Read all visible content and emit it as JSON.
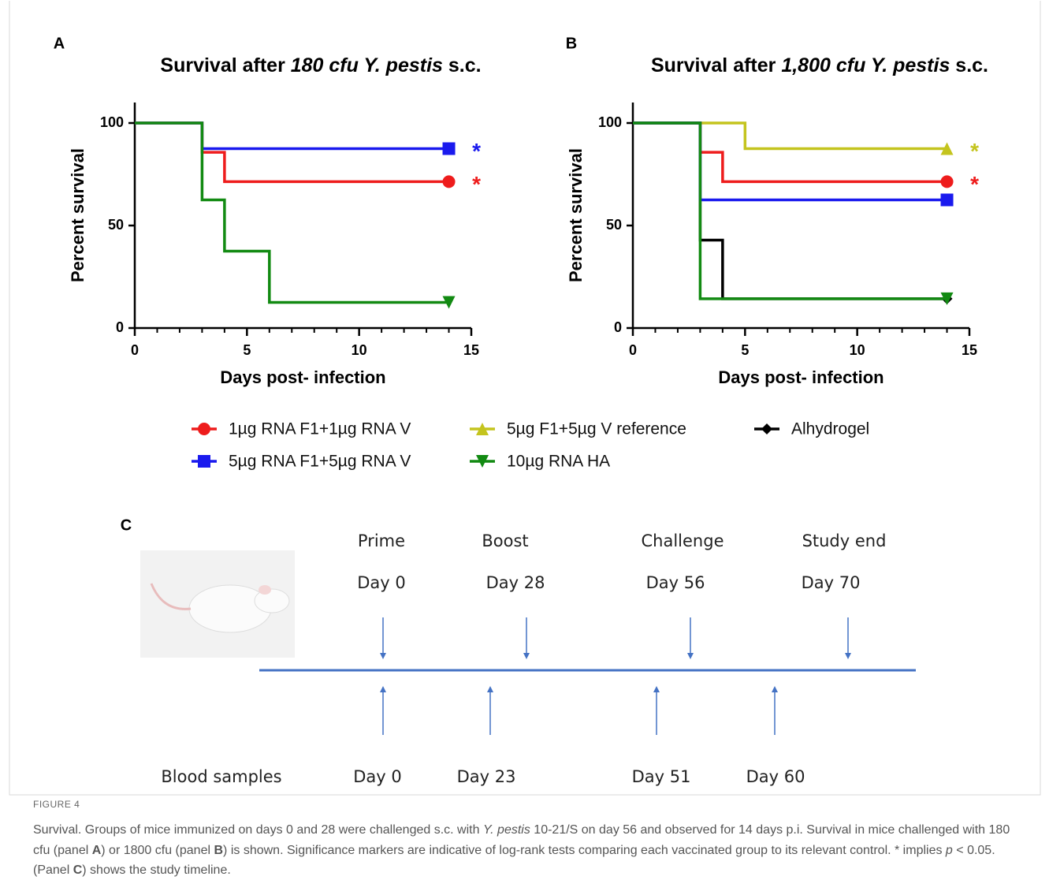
{
  "chart_data": [
    {
      "type": "line",
      "step": true,
      "panel_label": "A",
      "title_parts": [
        {
          "text": "Survival after "
        },
        {
          "text": "180 cfu Y. pestis",
          "italic": true
        },
        {
          "text": " s.c."
        }
      ],
      "x_label": "Days post- infection",
      "y_label": "Percent survival",
      "xlim": [
        0,
        15
      ],
      "xticks": [
        0,
        5,
        10,
        15
      ],
      "ylim": [
        0,
        110
      ],
      "yticks": [
        0,
        50,
        100
      ],
      "series": [
        {
          "color": "#ee1c1c",
          "marker": "circle",
          "annotation": "*",
          "x": [
            0,
            3,
            4,
            14
          ],
          "values": [
            100,
            85.7,
            71.4,
            71.4
          ]
        },
        {
          "color": "#1a1aee",
          "marker": "square",
          "annotation": "*",
          "x": [
            0,
            3,
            14
          ],
          "values": [
            100,
            87.5,
            87.5
          ]
        },
        {
          "color": "#128a12",
          "marker": "triangle-down",
          "x": [
            0,
            3,
            4,
            6,
            14
          ],
          "values": [
            100,
            62.5,
            37.5,
            12.5,
            12.5
          ]
        }
      ]
    },
    {
      "type": "line",
      "step": true,
      "panel_label": "B",
      "title_parts": [
        {
          "text": "Survival after "
        },
        {
          "text": "1,800 cfu Y. pestis",
          "italic": true
        },
        {
          "text": " s.c."
        }
      ],
      "x_label": "Days post- infection",
      "y_label": "Percent survival",
      "xlim": [
        0,
        15
      ],
      "xticks": [
        0,
        5,
        10,
        15
      ],
      "ylim": [
        0,
        110
      ],
      "yticks": [
        0,
        50,
        100
      ],
      "series": [
        {
          "name": "1µg RNA F1+1µg RNA V",
          "color": "#ee1c1c",
          "marker": "circle",
          "annotation": "*",
          "x": [
            0,
            3,
            4,
            14
          ],
          "values": [
            100,
            85.7,
            71.4,
            71.4
          ]
        },
        {
          "name": "5µg F1+5µg V reference",
          "color": "#c4c41e",
          "marker": "triangle-up",
          "annotation": "*",
          "x": [
            0,
            5,
            14
          ],
          "values": [
            100,
            87.5,
            87.5
          ]
        },
        {
          "name": "Alhydrogel",
          "color": "#000000",
          "marker": "diamond",
          "x": [
            0,
            3,
            4,
            14
          ],
          "values": [
            100,
            42.9,
            14.3,
            14.3
          ]
        },
        {
          "name": "5µg RNA F1+5µg RNA V",
          "color": "#1a1aee",
          "marker": "square",
          "x": [
            0,
            3,
            14
          ],
          "values": [
            100,
            62.5,
            62.5
          ]
        },
        {
          "name": "10µg RNA HA",
          "color": "#128a12",
          "marker": "triangle-down",
          "x": [
            0,
            3,
            14
          ],
          "values": [
            100,
            14.3,
            14.3
          ]
        }
      ]
    }
  ],
  "timeline": {
    "panel_label": "C",
    "events": [
      {
        "name": "Prime",
        "day": "Day 0"
      },
      {
        "name": "Boost",
        "day": "Day 28"
      },
      {
        "name": "Challenge",
        "day": "Day 56"
      },
      {
        "name": "Study end",
        "day": "Day 70"
      }
    ],
    "samples_label": "Blood samples",
    "samples": [
      "Day 0",
      "Day 23",
      "Day 51",
      "Day 60"
    ]
  },
  "caption": {
    "label": "FIGURE 4",
    "parts": [
      {
        "text": "Survival. Groups of mice immunized on days 0 and 28 were challenged s.c. with "
      },
      {
        "text": "Y. pestis",
        "italic": true
      },
      {
        "text": " 10-21/S on day 56 and observed for 14 days p.i. Survival in mice challenged with 180 cfu (panel "
      },
      {
        "text": "A",
        "bold": true
      },
      {
        "text": ") or 1800 cfu (panel "
      },
      {
        "text": "B",
        "bold": true
      },
      {
        "text": ") is shown. Significance markers are indicative of log-rank tests comparing each vaccinated group to its relevant control. * implies "
      },
      {
        "text": "p",
        "italic": true
      },
      {
        "text": " < 0.05. (Panel "
      },
      {
        "text": "C",
        "bold": true
      },
      {
        "text": ") shows the study timeline."
      }
    ]
  }
}
